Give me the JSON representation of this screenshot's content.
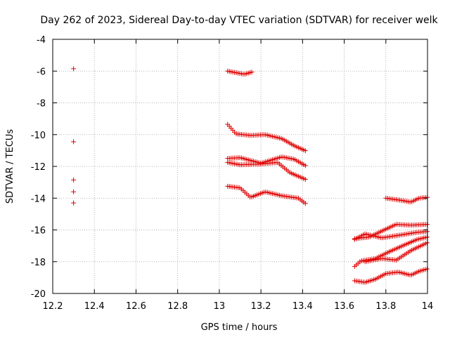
{
  "chart_data": {
    "type": "scatter",
    "title": "Day 262 of 2023, Sidereal Day-to-day VTEC variation (SDTVAR) for receiver welk",
    "xlabel": "GPS time / hours",
    "ylabel": "SDTVAR / TECUs",
    "xlim": [
      12.2,
      14.0
    ],
    "ylim": [
      -20,
      -4
    ],
    "xticks": [
      12.2,
      12.4,
      12.6,
      12.8,
      13.0,
      13.2,
      13.4,
      13.6,
      13.8,
      14.0
    ],
    "xtick_labels": [
      "12.2",
      "12.4",
      "12.6",
      "12.8",
      "13",
      "13.2",
      "13.4",
      "13.6",
      "13.8",
      "14"
    ],
    "yticks": [
      -20,
      -18,
      -16,
      -14,
      -12,
      -10,
      -8,
      -6,
      -4
    ],
    "ytick_labels": [
      "-20",
      "-18",
      "-16",
      "-14",
      "-12",
      "-10",
      "-8",
      "-6",
      "-4"
    ],
    "grid": true,
    "marker": "+",
    "marker_color": "#e00000",
    "series": [
      {
        "name": "isolated-points",
        "x": [
          12.3,
          12.3,
          12.3,
          12.3,
          12.3
        ],
        "y": [
          -5.85,
          -10.45,
          -12.85,
          -13.6,
          -14.3
        ]
      },
      {
        "name": "track-a",
        "x_start": 13.04,
        "x_end": 13.16,
        "knots": [
          [
            13.04,
            -6.0
          ],
          [
            13.08,
            -6.1
          ],
          [
            13.12,
            -6.2
          ],
          [
            13.16,
            -6.05
          ]
        ]
      },
      {
        "name": "track-b",
        "x_start": 13.04,
        "x_end": 13.42,
        "knots": [
          [
            13.04,
            -9.35
          ],
          [
            13.08,
            -9.95
          ],
          [
            13.15,
            -10.05
          ],
          [
            13.22,
            -10.0
          ],
          [
            13.3,
            -10.25
          ],
          [
            13.36,
            -10.7
          ],
          [
            13.42,
            -11.05
          ]
        ]
      },
      {
        "name": "track-c",
        "x_start": 13.04,
        "x_end": 13.42,
        "knots": [
          [
            13.04,
            -11.5
          ],
          [
            13.1,
            -11.45
          ],
          [
            13.2,
            -11.8
          ],
          [
            13.3,
            -11.4
          ],
          [
            13.36,
            -11.55
          ],
          [
            13.42,
            -12.0
          ]
        ]
      },
      {
        "name": "track-d",
        "x_start": 13.04,
        "x_end": 13.42,
        "knots": [
          [
            13.04,
            -11.75
          ],
          [
            13.1,
            -11.9
          ],
          [
            13.2,
            -11.85
          ],
          [
            13.28,
            -11.75
          ],
          [
            13.34,
            -12.4
          ],
          [
            13.42,
            -12.85
          ]
        ]
      },
      {
        "name": "track-e",
        "x_start": 13.04,
        "x_end": 13.42,
        "knots": [
          [
            13.04,
            -13.25
          ],
          [
            13.1,
            -13.35
          ],
          [
            13.15,
            -13.95
          ],
          [
            13.22,
            -13.6
          ],
          [
            13.3,
            -13.85
          ],
          [
            13.38,
            -14.0
          ],
          [
            13.42,
            -14.4
          ]
        ]
      },
      {
        "name": "track-f",
        "x_start": 13.8,
        "x_end": 14.0,
        "knots": [
          [
            13.8,
            -14.0
          ],
          [
            13.88,
            -14.15
          ],
          [
            13.92,
            -14.25
          ],
          [
            13.96,
            -14.0
          ],
          [
            14.0,
            -13.95
          ]
        ]
      },
      {
        "name": "track-g",
        "x_start": 13.65,
        "x_end": 14.0,
        "knots": [
          [
            13.65,
            -16.55
          ],
          [
            13.72,
            -16.45
          ],
          [
            13.8,
            -15.95
          ],
          [
            13.85,
            -15.65
          ],
          [
            13.92,
            -15.7
          ],
          [
            14.0,
            -15.65
          ]
        ]
      },
      {
        "name": "track-h",
        "x_start": 13.65,
        "x_end": 14.0,
        "knots": [
          [
            13.65,
            -16.6
          ],
          [
            13.7,
            -16.25
          ],
          [
            13.78,
            -16.5
          ],
          [
            13.88,
            -16.3
          ],
          [
            13.95,
            -16.15
          ],
          [
            14.0,
            -16.1
          ]
        ]
      },
      {
        "name": "track-i",
        "x_start": 13.65,
        "x_end": 14.0,
        "knots": [
          [
            13.65,
            -18.3
          ],
          [
            13.68,
            -17.95
          ],
          [
            13.75,
            -17.8
          ],
          [
            13.82,
            -17.35
          ],
          [
            13.88,
            -17.0
          ],
          [
            13.95,
            -16.6
          ],
          [
            14.0,
            -16.45
          ]
        ]
      },
      {
        "name": "track-j",
        "x_start": 13.7,
        "x_end": 14.0,
        "knots": [
          [
            13.7,
            -18.0
          ],
          [
            13.78,
            -17.8
          ],
          [
            13.85,
            -17.9
          ],
          [
            13.92,
            -17.3
          ],
          [
            14.0,
            -16.8
          ]
        ]
      },
      {
        "name": "track-k",
        "x_start": 13.65,
        "x_end": 14.0,
        "knots": [
          [
            13.65,
            -19.2
          ],
          [
            13.7,
            -19.3
          ],
          [
            13.75,
            -19.1
          ],
          [
            13.8,
            -18.75
          ],
          [
            13.86,
            -18.65
          ],
          [
            13.92,
            -18.85
          ],
          [
            13.96,
            -18.6
          ],
          [
            14.0,
            -18.45
          ]
        ]
      }
    ],
    "point_step_hours": 0.0083
  }
}
